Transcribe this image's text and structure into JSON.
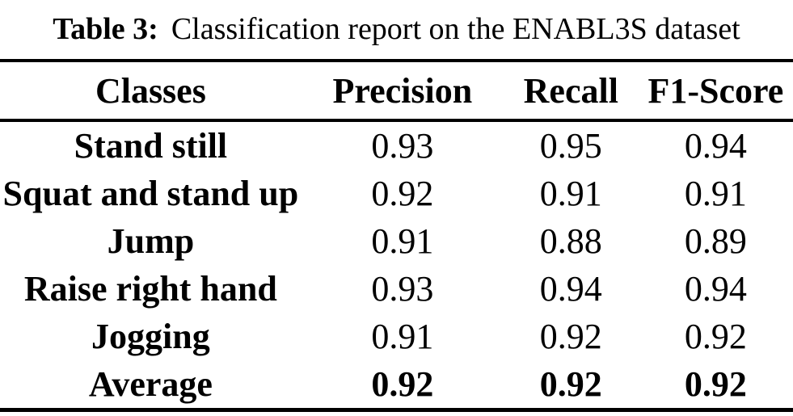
{
  "caption": {
    "label": "Table 3:",
    "text": "Classification report on the ENABL3S dataset"
  },
  "table": {
    "headers": [
      "Classes",
      "Precision",
      "Recall",
      "F1-Score"
    ],
    "rows": [
      {
        "class": "Stand still",
        "precision": "0.93",
        "recall": "0.95",
        "f1": "0.94",
        "bold_values": false
      },
      {
        "class": "Squat and stand up",
        "precision": "0.92",
        "recall": "0.91",
        "f1": "0.91",
        "bold_values": false
      },
      {
        "class": "Jump",
        "precision": "0.91",
        "recall": "0.88",
        "f1": "0.89",
        "bold_values": false
      },
      {
        "class": "Raise right hand",
        "precision": "0.93",
        "recall": "0.94",
        "f1": "0.94",
        "bold_values": false
      },
      {
        "class": "Jogging",
        "precision": "0.91",
        "recall": "0.92",
        "f1": "0.92",
        "bold_values": false
      },
      {
        "class": "Average",
        "precision": "0.92",
        "recall": "0.92",
        "f1": "0.92",
        "bold_values": true
      }
    ]
  },
  "colors": {
    "text": "#000000",
    "background": "#ffffff",
    "rule": "#000000"
  }
}
